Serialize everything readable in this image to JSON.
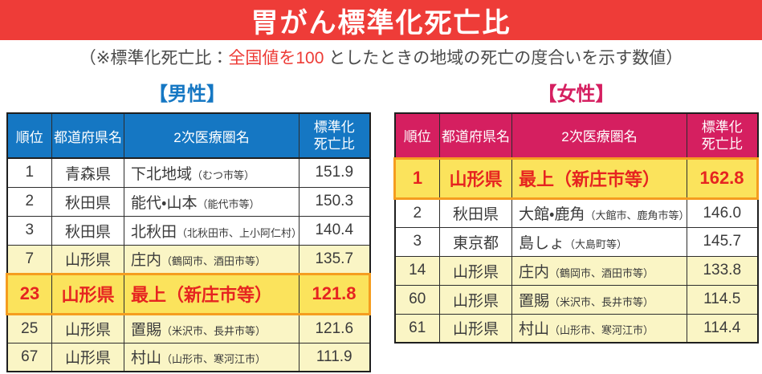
{
  "banner": {
    "title": "胃がん標準化死亡比"
  },
  "subtitle": {
    "prefix": "（※標準化死亡比：",
    "highlight": "全国値を100",
    "suffix": " としたときの地域の死亡の度合いを示す数値）"
  },
  "colors": {
    "banner_red": "#ee3c38",
    "subtitle_highlight_red": "#ed3b36",
    "male_blue": "#1577c3",
    "female_pink": "#d51f60",
    "pale_yellow_row": "#faf5c5",
    "highlight_yellow_row": "#fbe35c",
    "highlight_border_orange": "#f59d1f",
    "highlight_text_red": "#e62420",
    "grid_line": "#2d2d2d"
  },
  "table_headers": {
    "rank": "順位",
    "pref": "都道府県名",
    "area": "2次医療圏名",
    "smr_line1": "標準化",
    "smr_line2": "死亡比"
  },
  "tables": [
    {
      "heading": "【男性】",
      "rows": [
        {
          "rank": "1",
          "pref": "青森県",
          "area": "下北地域",
          "note": "（むつ市等）",
          "smr": "151.9"
        },
        {
          "rank": "2",
          "pref": "秋田県",
          "area": "能代・山本",
          "note": "（能代市等）",
          "smr": "150.3"
        },
        {
          "rank": "3",
          "pref": "秋田県",
          "area": "北秋田",
          "note": "（北秋田市、上小阿仁村）",
          "smr": "140.4"
        },
        {
          "rank": "7",
          "pref": "山形県",
          "area": "庄内",
          "note": "（鶴岡市、酒田市等）",
          "smr": "135.7"
        },
        {
          "rank": "23",
          "pref": "山形県",
          "area": "最上（新庄市等）",
          "note": "",
          "smr": "121.8"
        },
        {
          "rank": "25",
          "pref": "山形県",
          "area": "置賜",
          "note": "（米沢市、長井市等）",
          "smr": "121.6"
        },
        {
          "rank": "67",
          "pref": "山形県",
          "area": "村山",
          "note": "（山形市、寒河江市）",
          "smr": "111.9"
        }
      ]
    },
    {
      "heading": "【女性】",
      "rows": [
        {
          "rank": "1",
          "pref": "山形県",
          "area": "最上（新庄市等）",
          "note": "",
          "smr": "162.8"
        },
        {
          "rank": "2",
          "pref": "秋田県",
          "area": "大館・鹿角",
          "note": "（大館市、鹿角市等）",
          "smr": "146.0"
        },
        {
          "rank": "3",
          "pref": "東京都",
          "area": "島しょ",
          "note": "（大島町等）",
          "smr": "145.7"
        },
        {
          "rank": "14",
          "pref": "山形県",
          "area": "庄内",
          "note": "（鶴岡市、酒田市等）",
          "smr": "133.8"
        },
        {
          "rank": "60",
          "pref": "山形県",
          "area": "置賜",
          "note": "（米沢市、長井市等）",
          "smr": "114.5"
        },
        {
          "rank": "61",
          "pref": "山形県",
          "area": "村山",
          "note": "（山形市、寒河江市）",
          "smr": "114.4"
        }
      ]
    }
  ],
  "chart_data": [
    {
      "type": "table",
      "title": "【男性】 胃がん標準化死亡比",
      "columns": [
        "順位",
        "都道府県名",
        "2次医療圏名",
        "標準化死亡比"
      ],
      "rows": [
        [
          "1",
          "青森県",
          "下北地域（むつ市等）",
          151.9
        ],
        [
          "2",
          "秋田県",
          "能代・山本（能代市等）",
          150.3
        ],
        [
          "3",
          "秋田県",
          "北秋田（北秋田市、上小阿仁村）",
          140.4
        ],
        [
          "7",
          "山形県",
          "庄内（鶴岡市、酒田市等）",
          135.7
        ],
        [
          "23",
          "山形県",
          "最上（新庄市等）",
          121.8
        ],
        [
          "25",
          "山形県",
          "置賜（米沢市、長井市等）",
          121.6
        ],
        [
          "67",
          "山形県",
          "村山（山形市、寒河江市）",
          111.9
        ]
      ],
      "highlighted_row_rank": "23"
    },
    {
      "type": "table",
      "title": "【女性】 胃がん標準化死亡比",
      "columns": [
        "順位",
        "都道府県名",
        "2次医療圏名",
        "標準化死亡比"
      ],
      "rows": [
        [
          "1",
          "山形県",
          "最上（新庄市等）",
          162.8
        ],
        [
          "2",
          "秋田県",
          "大館・鹿角（大館市、鹿角市等）",
          146.0
        ],
        [
          "3",
          "東京都",
          "島しょ（大島町等）",
          145.7
        ],
        [
          "14",
          "山形県",
          "庄内（鶴岡市、酒田市等）",
          133.8
        ],
        [
          "60",
          "山形県",
          "置賜（米沢市、長井市等）",
          114.5
        ],
        [
          "61",
          "山形県",
          "村山（山形市、寒河江市）",
          114.4
        ]
      ],
      "highlighted_row_rank": "1"
    }
  ]
}
